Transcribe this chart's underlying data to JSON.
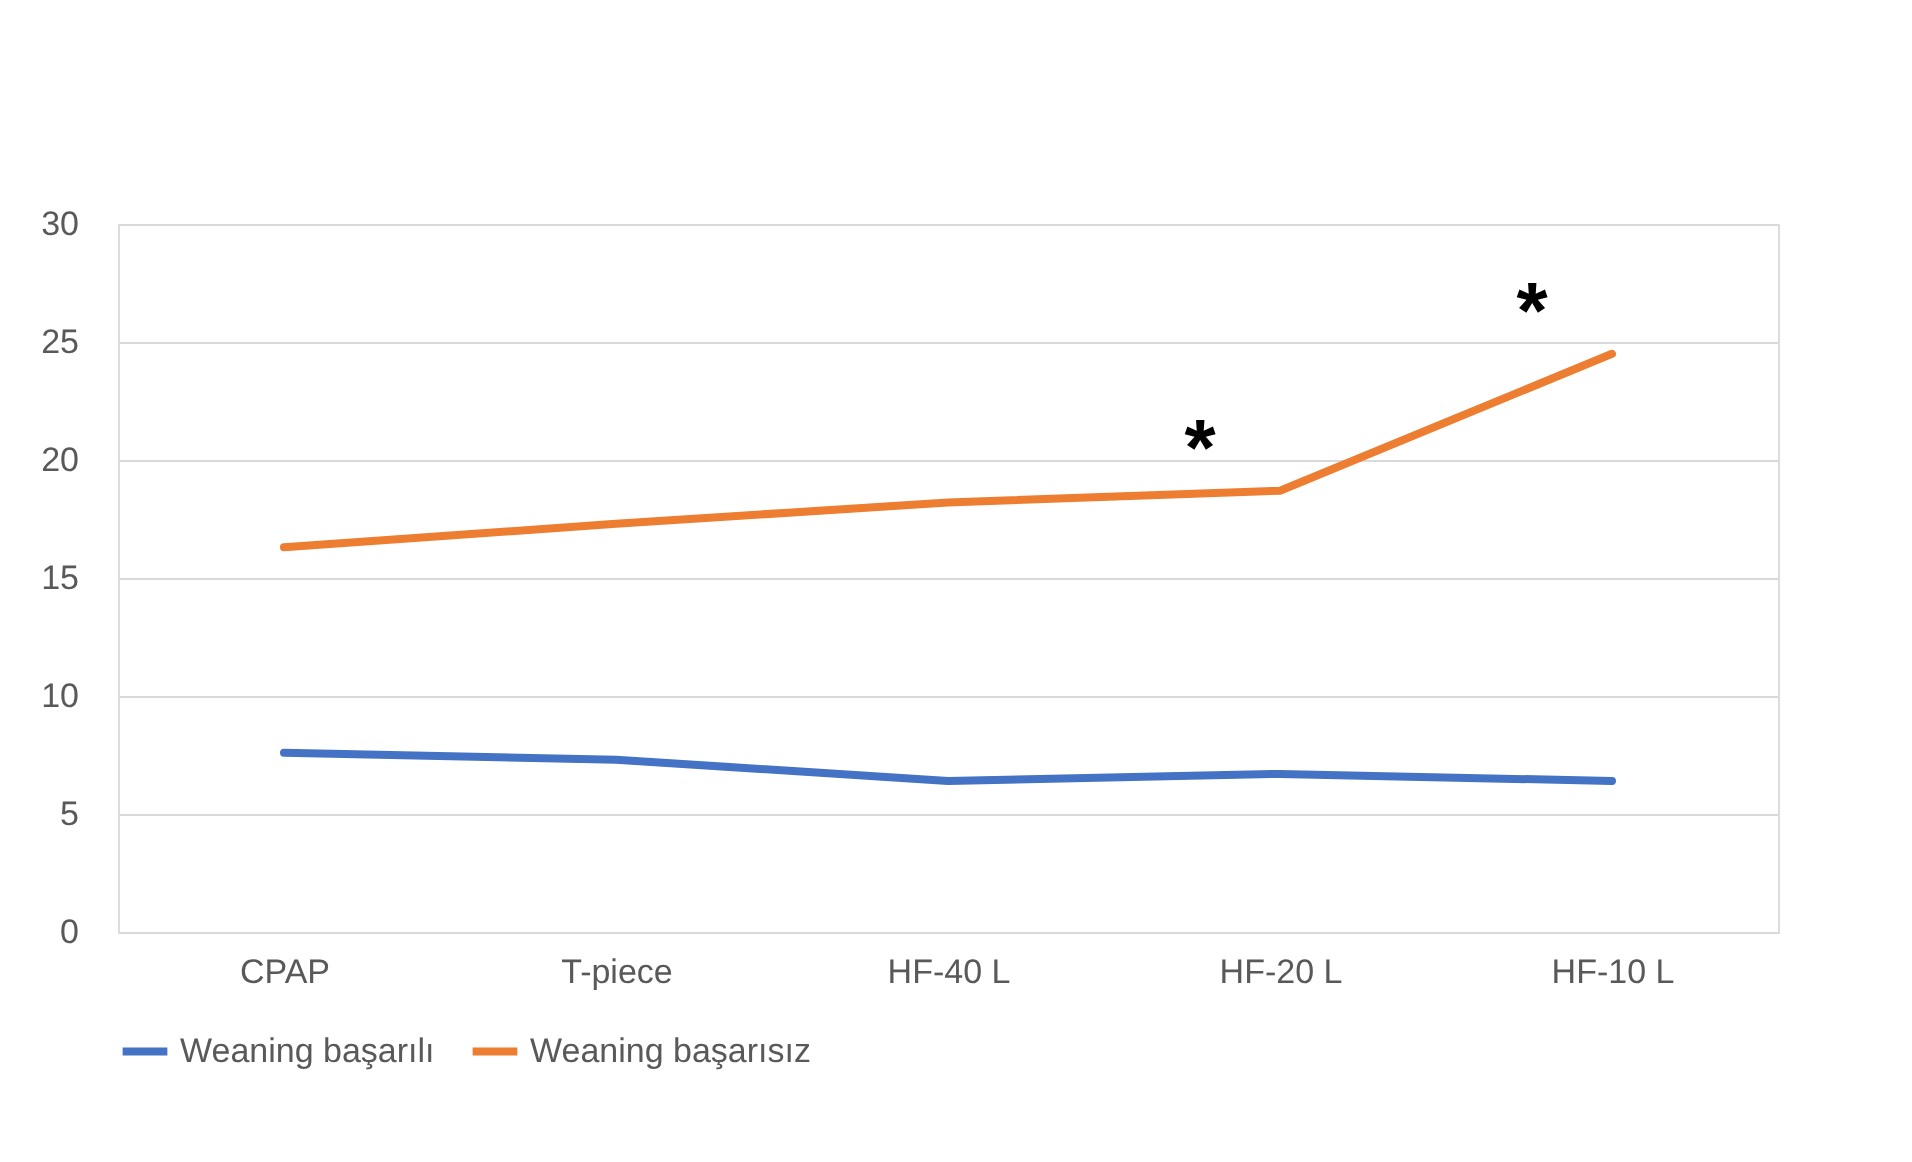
{
  "chart_data": {
    "type": "line",
    "categories": [
      "CPAP",
      "T-piece",
      "HF-40 L",
      "HF-20 L",
      "HF-10 L"
    ],
    "series": [
      {
        "name": "Weaning başarılı",
        "color": "#4472c4",
        "values": [
          7.6,
          7.3,
          6.4,
          6.7,
          6.4
        ]
      },
      {
        "name": "Weaning başarısız",
        "color": "#ed7d31",
        "values": [
          16.3,
          17.3,
          18.2,
          18.7,
          24.5
        ]
      }
    ],
    "ylim": [
      0,
      30
    ],
    "yticks": [
      0,
      5,
      10,
      15,
      20,
      25,
      30
    ],
    "grid": "y",
    "legend": "bottom",
    "marker": "none",
    "line_style": "solid",
    "annotations": [
      "*",
      "*"
    ]
  }
}
